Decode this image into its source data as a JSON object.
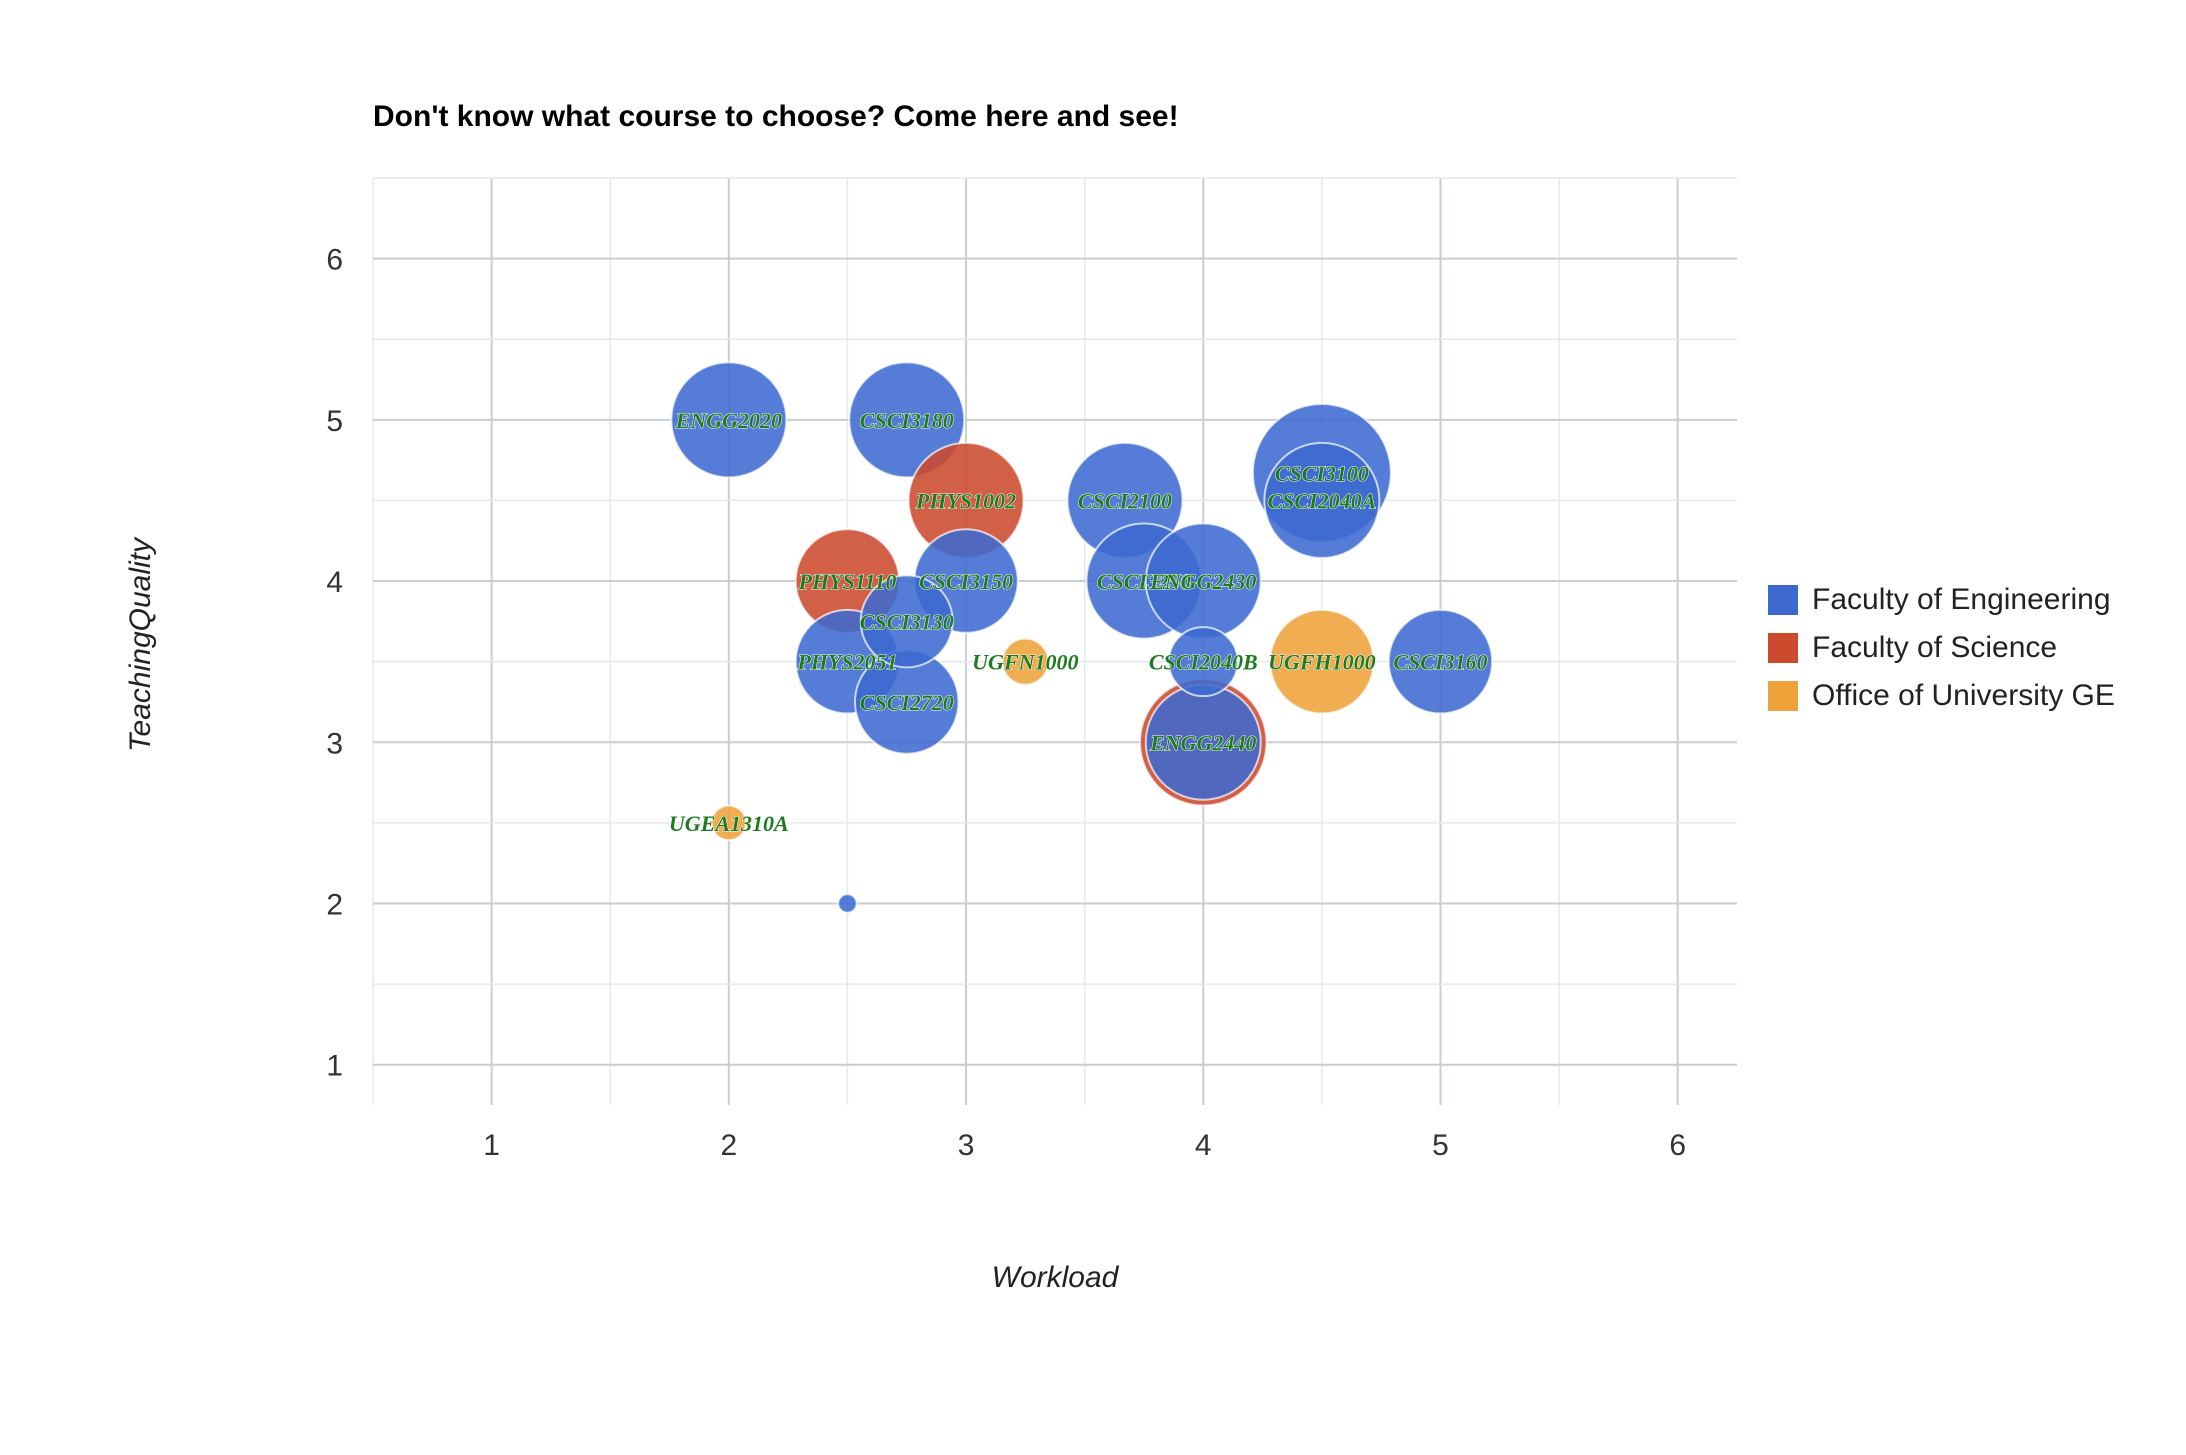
{
  "chart_data": {
    "type": "scatter",
    "title": "Don't know what course to choose? Come here and see!",
    "xlabel": "Workload",
    "ylabel": "TeachingQuality",
    "xlim": [
      0.5,
      6.25
    ],
    "ylim": [
      0.75,
      6.5
    ],
    "xticks": [
      "1",
      "2",
      "3",
      "4",
      "5",
      "6"
    ],
    "yticks": [
      "1",
      "2",
      "3",
      "4",
      "5",
      "6"
    ],
    "grid": true,
    "legend_position": "right",
    "groups": [
      {
        "name": "Faculty of Engineering",
        "color": "#3e6ad0"
      },
      {
        "name": "Faculty of Science",
        "color": "#cc4a2e"
      },
      {
        "name": "Office of University GE",
        "color": "#eea23a"
      }
    ],
    "label_color": "#1e7a1e",
    "points": [
      {
        "label": "ENGG2020",
        "x": 2.0,
        "y": 5.0,
        "size": 5,
        "group": 0
      },
      {
        "label": "CSCI3180",
        "x": 2.75,
        "y": 5.0,
        "size": 5,
        "group": 0
      },
      {
        "label": "PHYS1002",
        "x": 3.0,
        "y": 4.5,
        "size": 5,
        "group": 1
      },
      {
        "label": "CSCI2100",
        "x": 3.67,
        "y": 4.5,
        "size": 5,
        "group": 0
      },
      {
        "label": "CSCI3100",
        "x": 4.5,
        "y": 4.67,
        "size": 6,
        "group": 0
      },
      {
        "label": "CSCI2040A",
        "x": 4.5,
        "y": 4.5,
        "size": 5,
        "group": 0
      },
      {
        "label": "PHYS1110",
        "x": 2.5,
        "y": 4.0,
        "size": 4.5,
        "group": 1
      },
      {
        "label": "CSCI3150",
        "x": 3.0,
        "y": 4.0,
        "size": 4.5,
        "group": 0
      },
      {
        "label": "CSCI3250",
        "x": 3.75,
        "y": 4.0,
        "size": 5,
        "group": 0
      },
      {
        "label": "ENGG2430",
        "x": 4.0,
        "y": 4.0,
        "size": 5,
        "group": 0
      },
      {
        "label": "CSCI3130",
        "x": 2.75,
        "y": 3.75,
        "size": 4,
        "group": 0
      },
      {
        "label": "PHYS2051",
        "x": 2.5,
        "y": 3.5,
        "size": 4.5,
        "group": 0
      },
      {
        "label": "UGFN1000",
        "x": 3.25,
        "y": 3.5,
        "size": 2,
        "group": 2
      },
      {
        "label": "CSCI2040B",
        "x": 4.0,
        "y": 3.5,
        "size": 3,
        "group": 0
      },
      {
        "label": "UGFH1000",
        "x": 4.5,
        "y": 3.5,
        "size": 4.5,
        "group": 2
      },
      {
        "label": "CSCI3160",
        "x": 5.0,
        "y": 3.5,
        "size": 4.5,
        "group": 0
      },
      {
        "label": "CSCI2720",
        "x": 2.75,
        "y": 3.25,
        "size": 4.5,
        "group": 0
      },
      {
        "label": "ENGG2440",
        "x": 4.0,
        "y": 3.0,
        "size": 5.5,
        "group": 1
      },
      {
        "label": "ENGG2440",
        "x": 4.0,
        "y": 3.0,
        "size": 5,
        "group": 0
      },
      {
        "label": "UGEA1310A",
        "x": 2.0,
        "y": 2.5,
        "size": 1.5,
        "group": 2
      },
      {
        "label": "",
        "x": 2.5,
        "y": 2.0,
        "size": 0.8,
        "group": 0
      }
    ]
  }
}
